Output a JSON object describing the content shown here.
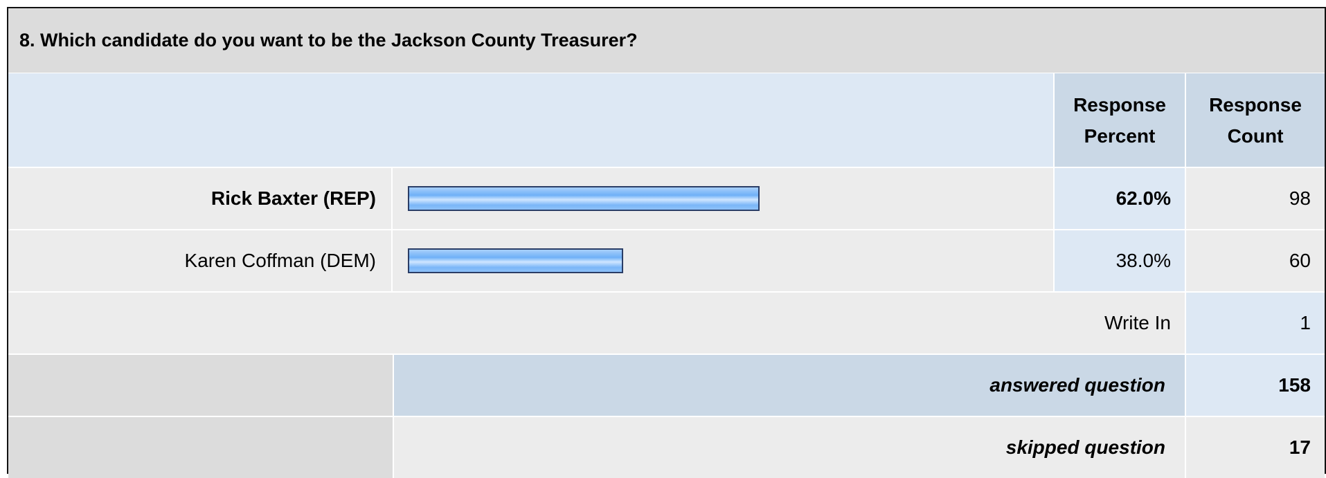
{
  "question": {
    "title": "8. Which candidate do you want to be the Jackson County Treasurer?"
  },
  "header": {
    "response_percent": "Response Percent",
    "response_count": "Response Count"
  },
  "options": [
    {
      "label": "Rick Baxter (REP)",
      "percent": "62.0%",
      "count": "98",
      "fraction": 0.62,
      "highlighted": true
    },
    {
      "label": "Karen Coffman (DEM)",
      "percent": "38.0%",
      "count": "60",
      "fraction": 0.38,
      "highlighted": false
    }
  ],
  "write_in": {
    "label": "Write In",
    "count": "1"
  },
  "summary": {
    "answered_label": "answered question",
    "answered_count": "158",
    "skipped_label": "skipped question",
    "skipped_count": "17"
  },
  "colors": {
    "bar_border": "#2a3d66",
    "bar_fill": "#6fb0f7",
    "header_bg": "#dde8f4"
  }
}
